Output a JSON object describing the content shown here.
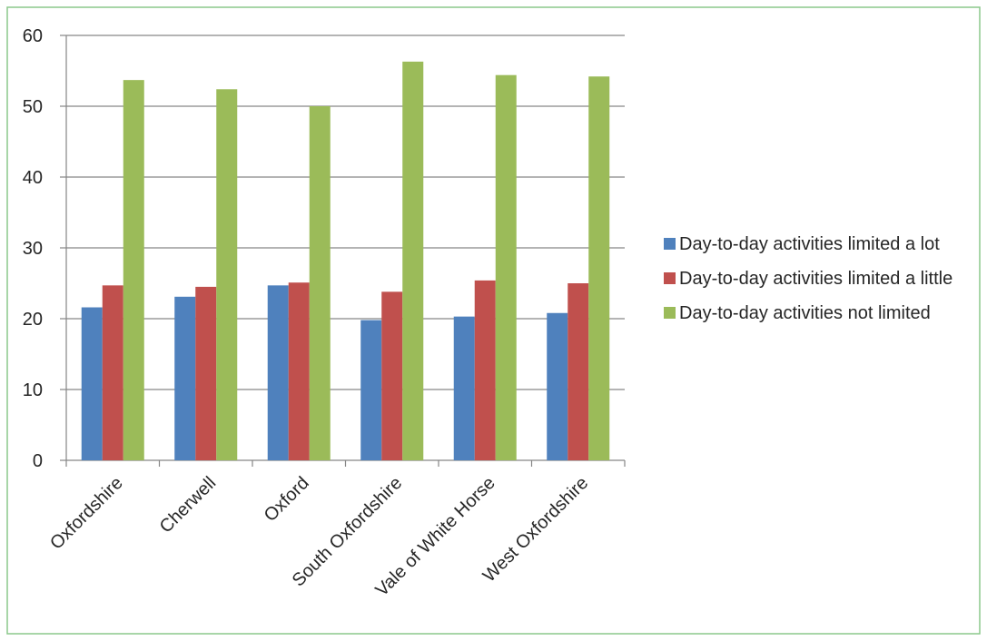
{
  "chart_data": {
    "type": "bar",
    "title": "",
    "xlabel": "",
    "ylabel": "",
    "ylim": [
      0,
      60
    ],
    "yticks": [
      0,
      10,
      20,
      30,
      40,
      50,
      60
    ],
    "grid": true,
    "legend_position": "right",
    "categories": [
      "Oxfordshire",
      "Cherwell",
      "Oxford",
      "South Oxfordshire",
      "Vale of White Horse",
      "West Oxfordshire"
    ],
    "series": [
      {
        "name": "Day-to-day activities limited a lot",
        "color": "#4F81BD",
        "values": [
          21.6,
          23.1,
          24.7,
          19.8,
          20.3,
          20.8
        ]
      },
      {
        "name": "Day-to-day activities limited a little",
        "color": "#C0504D",
        "values": [
          24.7,
          24.5,
          25.1,
          23.8,
          25.4,
          25.0
        ]
      },
      {
        "name": "Day-to-day activities not limited",
        "color": "#9BBB59",
        "values": [
          53.7,
          52.4,
          50.0,
          56.3,
          54.4,
          54.2
        ]
      }
    ]
  },
  "frame": {
    "border_color": "#8BC88B"
  }
}
